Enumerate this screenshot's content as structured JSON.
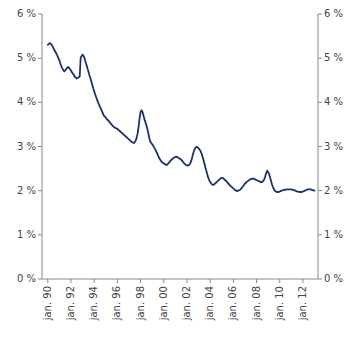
{
  "chart_data": {
    "type": "line",
    "color": "#1f3268",
    "grid": false,
    "xlim": [
      1989.5,
      2013.3
    ],
    "xticks": [
      {
        "value": 1990,
        "label": "jan. 90"
      },
      {
        "value": 1992,
        "label": "jan. 92"
      },
      {
        "value": 1994,
        "label": "jan. 94"
      },
      {
        "value": 1996,
        "label": "jan. 96"
      },
      {
        "value": 1998,
        "label": "jan. 98"
      },
      {
        "value": 2000,
        "label": "jan. 00"
      },
      {
        "value": 2002,
        "label": "jan. 02"
      },
      {
        "value": 2004,
        "label": "jan. 04"
      },
      {
        "value": 2006,
        "label": "jan. 06"
      },
      {
        "value": 2008,
        "label": "jan. 08"
      },
      {
        "value": 2010,
        "label": "jan. 10"
      },
      {
        "value": 2012,
        "label": "jan. 12"
      }
    ],
    "ylim": [
      0,
      6
    ],
    "yticks": [
      {
        "value": 0,
        "label": "0 %"
      },
      {
        "value": 1,
        "label": "1 %"
      },
      {
        "value": 2,
        "label": "2 %"
      },
      {
        "value": 3,
        "label": "3 %"
      },
      {
        "value": 4,
        "label": "4 %"
      },
      {
        "value": 5,
        "label": "5 %"
      },
      {
        "value": 6,
        "label": "6 %"
      }
    ],
    "y2lim": [
      0,
      6
    ],
    "y2ticks": [
      {
        "value": 0,
        "label": "0 %"
      },
      {
        "value": 1,
        "label": "1 %"
      },
      {
        "value": 2,
        "label": "2 %"
      },
      {
        "value": 3,
        "label": "3 %"
      },
      {
        "value": 4,
        "label": "4 %"
      },
      {
        "value": 5,
        "label": "5 %"
      },
      {
        "value": 6,
        "label": "6 %"
      }
    ],
    "x": [
      1990.0,
      1990.083,
      1990.167,
      1990.25,
      1990.333,
      1990.417,
      1990.5,
      1990.583,
      1990.667,
      1990.75,
      1990.833,
      1990.917,
      1991.0,
      1991.083,
      1991.167,
      1991.25,
      1991.333,
      1991.417,
      1991.5,
      1991.583,
      1991.667,
      1991.75,
      1991.833,
      1991.917,
      1992.0,
      1992.083,
      1992.167,
      1992.25,
      1992.333,
      1992.417,
      1992.5,
      1992.583,
      1992.667,
      1992.75,
      1992.833,
      1992.917,
      1993.0,
      1993.083,
      1993.167,
      1993.25,
      1993.333,
      1993.417,
      1993.5,
      1993.583,
      1993.667,
      1993.75,
      1993.833,
      1993.917,
      1994.0,
      1994.083,
      1994.167,
      1994.25,
      1994.333,
      1994.417,
      1994.5,
      1994.583,
      1994.667,
      1994.75,
      1994.833,
      1994.917,
      1995.0,
      1995.083,
      1995.167,
      1995.25,
      1995.333,
      1995.417,
      1995.5,
      1995.583,
      1995.667,
      1995.75,
      1995.833,
      1995.917,
      1996.0,
      1996.083,
      1996.167,
      1996.25,
      1996.333,
      1996.417,
      1996.5,
      1996.583,
      1996.667,
      1996.75,
      1996.833,
      1996.917,
      1997.0,
      1997.083,
      1997.167,
      1997.25,
      1997.333,
      1997.417,
      1997.5,
      1997.583,
      1997.667,
      1997.75,
      1997.833,
      1997.917,
      1998.0,
      1998.083,
      1998.167,
      1998.25,
      1998.333,
      1998.417,
      1998.5,
      1998.583,
      1998.667,
      1998.75,
      1998.833,
      1998.917,
      1999.0,
      1999.083,
      1999.167,
      1999.25,
      1999.333,
      1999.417,
      1999.5,
      1999.583,
      1999.667,
      1999.75,
      1999.833,
      1999.917,
      2000.0,
      2000.083,
      2000.167,
      2000.25,
      2000.333,
      2000.417,
      2000.5,
      2000.583,
      2000.667,
      2000.75,
      2000.833,
      2000.917,
      2001.0,
      2001.083,
      2001.167,
      2001.25,
      2001.333,
      2001.417,
      2001.5,
      2001.583,
      2001.667,
      2001.75,
      2001.833,
      2001.917,
      2002.0,
      2002.083,
      2002.167,
      2002.25,
      2002.333,
      2002.417,
      2002.5,
      2002.583,
      2002.667,
      2002.75,
      2002.833,
      2002.917,
      2003.0,
      2003.083,
      2003.167,
      2003.25,
      2003.333,
      2003.417,
      2003.5,
      2003.583,
      2003.667,
      2003.75,
      2003.833,
      2003.917,
      2004.0,
      2004.083,
      2004.167,
      2004.25,
      2004.333,
      2004.417,
      2004.5,
      2004.583,
      2004.667,
      2004.75,
      2004.833,
      2004.917,
      2005.0,
      2005.083,
      2005.167,
      2005.25,
      2005.333,
      2005.417,
      2005.5,
      2005.583,
      2005.667,
      2005.75,
      2005.833,
      2005.917,
      2006.0,
      2006.083,
      2006.167,
      2006.25,
      2006.333,
      2006.417,
      2006.5,
      2006.583,
      2006.667,
      2006.75,
      2006.833,
      2006.917,
      2007.0,
      2007.083,
      2007.167,
      2007.25,
      2007.333,
      2007.417,
      2007.5,
      2007.583,
      2007.667,
      2007.75,
      2007.833,
      2007.917,
      2008.0,
      2008.083,
      2008.167,
      2008.25,
      2008.333,
      2008.417,
      2008.5,
      2008.583,
      2008.667,
      2008.75,
      2008.833,
      2008.917,
      2009.0,
      2009.083,
      2009.167,
      2009.25,
      2009.333,
      2009.417,
      2009.5,
      2009.583,
      2009.667,
      2009.75,
      2009.833,
      2009.917,
      2010.0,
      2010.083,
      2010.167,
      2010.25,
      2010.333,
      2010.417,
      2010.5,
      2010.583,
      2010.667,
      2010.75,
      2010.833,
      2010.917,
      2011.0,
      2011.083,
      2011.167,
      2011.25,
      2011.333,
      2011.417,
      2011.5,
      2011.583,
      2011.667,
      2011.75,
      2011.833,
      2011.917,
      2012.0,
      2012.083,
      2012.167,
      2012.25,
      2012.333,
      2012.417,
      2012.5,
      2012.583,
      2012.667,
      2012.75,
      2012.833,
      2012.917,
      2013.0
    ],
    "values": [
      5.3,
      5.32,
      5.34,
      5.33,
      5.3,
      5.27,
      5.22,
      5.18,
      5.14,
      5.1,
      5.05,
      5.0,
      4.95,
      4.88,
      4.82,
      4.77,
      4.73,
      4.7,
      4.72,
      4.75,
      4.78,
      4.8,
      4.78,
      4.75,
      4.72,
      4.68,
      4.65,
      4.62,
      4.58,
      4.56,
      4.54,
      4.55,
      4.57,
      4.58,
      5.0,
      5.05,
      5.08,
      5.05,
      5.0,
      4.92,
      4.85,
      4.77,
      4.7,
      4.62,
      4.55,
      4.48,
      4.4,
      4.32,
      4.25,
      4.18,
      4.12,
      4.06,
      4.0,
      3.95,
      3.9,
      3.85,
      3.8,
      3.75,
      3.7,
      3.68,
      3.65,
      3.62,
      3.6,
      3.58,
      3.55,
      3.52,
      3.5,
      3.47,
      3.45,
      3.43,
      3.42,
      3.41,
      3.4,
      3.38,
      3.36,
      3.34,
      3.32,
      3.3,
      3.28,
      3.26,
      3.24,
      3.22,
      3.2,
      3.18,
      3.16,
      3.14,
      3.12,
      3.1,
      3.09,
      3.08,
      3.1,
      3.14,
      3.2,
      3.3,
      3.45,
      3.65,
      3.78,
      3.82,
      3.78,
      3.7,
      3.62,
      3.55,
      3.48,
      3.4,
      3.3,
      3.2,
      3.12,
      3.08,
      3.05,
      3.02,
      2.98,
      2.94,
      2.9,
      2.85,
      2.8,
      2.75,
      2.71,
      2.68,
      2.65,
      2.63,
      2.62,
      2.6,
      2.59,
      2.58,
      2.6,
      2.62,
      2.65,
      2.68,
      2.7,
      2.72,
      2.74,
      2.75,
      2.76,
      2.77,
      2.76,
      2.75,
      2.73,
      2.72,
      2.7,
      2.68,
      2.65,
      2.62,
      2.6,
      2.58,
      2.57,
      2.57,
      2.58,
      2.6,
      2.65,
      2.72,
      2.8,
      2.88,
      2.94,
      2.98,
      2.99,
      2.98,
      2.96,
      2.93,
      2.9,
      2.85,
      2.78,
      2.7,
      2.62,
      2.53,
      2.45,
      2.37,
      2.3,
      2.24,
      2.2,
      2.17,
      2.14,
      2.13,
      2.14,
      2.16,
      2.18,
      2.2,
      2.22,
      2.24,
      2.26,
      2.28,
      2.29,
      2.29,
      2.27,
      2.25,
      2.23,
      2.21,
      2.18,
      2.16,
      2.13,
      2.11,
      2.09,
      2.07,
      2.05,
      2.03,
      2.01,
      2.0,
      1.99,
      2.0,
      2.01,
      2.02,
      2.04,
      2.07,
      2.1,
      2.13,
      2.16,
      2.18,
      2.2,
      2.22,
      2.23,
      2.25,
      2.26,
      2.27,
      2.27,
      2.27,
      2.26,
      2.25,
      2.24,
      2.23,
      2.22,
      2.21,
      2.2,
      2.19,
      2.2,
      2.22,
      2.26,
      2.32,
      2.4,
      2.45,
      2.42,
      2.38,
      2.3,
      2.22,
      2.14,
      2.08,
      2.03,
      2.0,
      1.98,
      1.97,
      1.97,
      1.97,
      1.98,
      1.99,
      2.0,
      2.01,
      2.02,
      2.02,
      2.02,
      2.03,
      2.03,
      2.03,
      2.03,
      2.03,
      2.03,
      2.02,
      2.02,
      2.01,
      2.0,
      1.99,
      1.98,
      1.98,
      1.97,
      1.97,
      1.97,
      1.97,
      1.98,
      1.99,
      2.0,
      2.01,
      2.02,
      2.03,
      2.03,
      2.03,
      2.03,
      2.02,
      2.01,
      2.01,
      2.0
    ]
  }
}
